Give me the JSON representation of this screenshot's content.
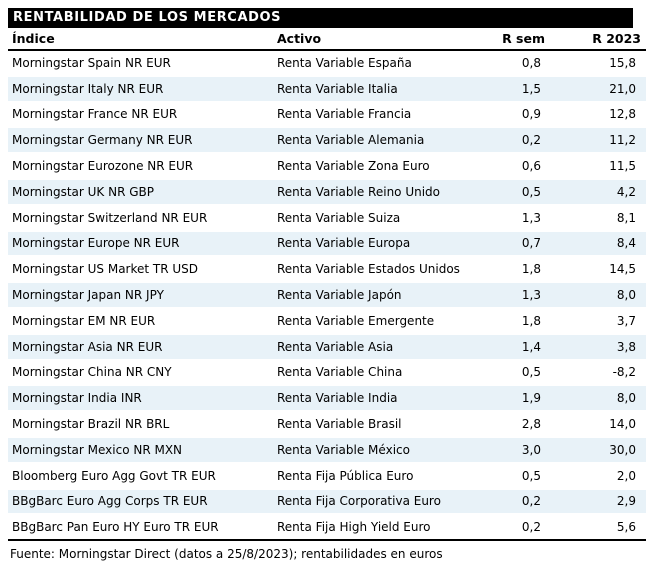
{
  "report": {
    "title": "RENTABILIDAD DE LOS MERCADOS",
    "footer": "Fuente: Morningstar Direct (datos a 25/8/2023); rentabilidades en euros"
  },
  "colors": {
    "title_bar_bg": "#000000",
    "title_bar_text": "#ffffff",
    "row_alt_bg": "#e8f2f8",
    "rule_color": "#000000",
    "text": "#000000"
  },
  "table": {
    "columns": [
      "Índice",
      "Activo",
      "R sem",
      "R 2023"
    ],
    "rows": [
      {
        "indice": "Morningstar Spain NR EUR",
        "activo": "Renta Variable España",
        "r_sem": "0,8",
        "r_2023": "15,8"
      },
      {
        "indice": "Morningstar Italy NR EUR",
        "activo": "Renta Variable Italia",
        "r_sem": "1,5",
        "r_2023": "21,0"
      },
      {
        "indice": "Morningstar France NR EUR",
        "activo": "Renta Variable Francia",
        "r_sem": "0,9",
        "r_2023": "12,8"
      },
      {
        "indice": "Morningstar Germany NR EUR",
        "activo": "Renta Variable Alemania",
        "r_sem": "0,2",
        "r_2023": "11,2"
      },
      {
        "indice": "Morningstar Eurozone NR EUR",
        "activo": "Renta Variable Zona Euro",
        "r_sem": "0,6",
        "r_2023": "11,5"
      },
      {
        "indice": "Morningstar UK NR GBP",
        "activo": "Renta Variable Reino Unido",
        "r_sem": "0,5",
        "r_2023": "4,2"
      },
      {
        "indice": "Morningstar Switzerland NR EUR",
        "activo": "Renta Variable Suiza",
        "r_sem": "1,3",
        "r_2023": "8,1"
      },
      {
        "indice": "Morningstar Europe NR EUR",
        "activo": "Renta Variable Europa",
        "r_sem": "0,7",
        "r_2023": "8,4"
      },
      {
        "indice": "Morningstar US Market TR USD",
        "activo": "Renta Variable Estados Unidos",
        "r_sem": "1,8",
        "r_2023": "14,5"
      },
      {
        "indice": "Morningstar Japan NR JPY",
        "activo": "Renta Variable Japón",
        "r_sem": "1,3",
        "r_2023": "8,0"
      },
      {
        "indice": "Morningstar EM NR EUR",
        "activo": "Renta Variable Emergente",
        "r_sem": "1,8",
        "r_2023": "3,7"
      },
      {
        "indice": "Morningstar Asia NR EUR",
        "activo": "Renta Variable Asia",
        "r_sem": "1,4",
        "r_2023": "3,8"
      },
      {
        "indice": "Morningstar China NR CNY",
        "activo": "Renta Variable China",
        "r_sem": "0,5",
        "r_2023": "-8,2"
      },
      {
        "indice": "Morningstar India INR",
        "activo": "Renta Variable India",
        "r_sem": "1,9",
        "r_2023": "8,0"
      },
      {
        "indice": "Morningstar Brazil NR BRL",
        "activo": "Renta Variable Brasil",
        "r_sem": "2,8",
        "r_2023": "14,0"
      },
      {
        "indice": "Morningstar Mexico NR MXN",
        "activo": "Renta Variable México",
        "r_sem": "3,0",
        "r_2023": "30,0"
      },
      {
        "indice": "Bloomberg Euro Agg Govt TR EUR",
        "activo": "Renta Fija Pública Euro",
        "r_sem": "0,5",
        "r_2023": "2,0"
      },
      {
        "indice": "BBgBarc Euro Agg Corps TR EUR",
        "activo": "Renta Fija Corporativa Euro",
        "r_sem": "0,2",
        "r_2023": "2,9"
      },
      {
        "indice": "BBgBarc Pan Euro HY Euro TR EUR",
        "activo": "Renta Fija High Yield Euro",
        "r_sem": "0,2",
        "r_2023": "5,6"
      }
    ]
  }
}
